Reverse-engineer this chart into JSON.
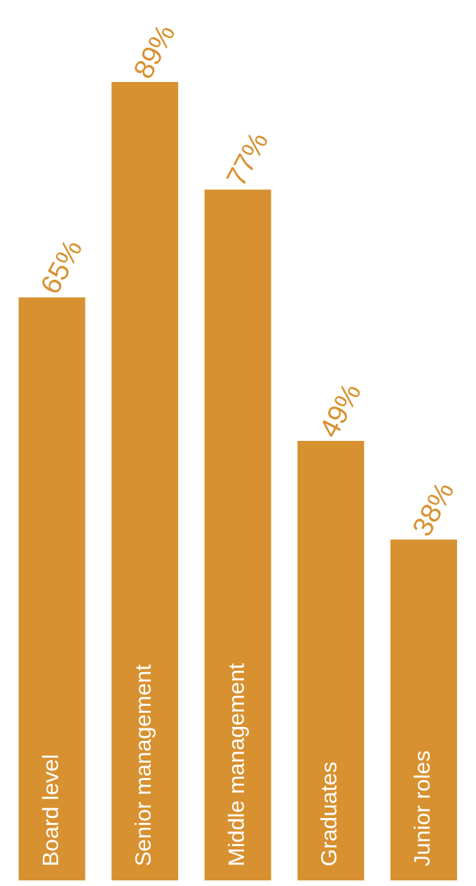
{
  "chart_data": {
    "type": "bar",
    "categories": [
      "Board level",
      "Senior management",
      "Middle management",
      "Graduates",
      "Junior roles"
    ],
    "values": [
      65,
      89,
      77,
      49,
      38
    ],
    "value_labels": [
      "65%",
      "89%",
      "77%",
      "49%",
      "38%"
    ],
    "color": "#d89130"
  }
}
